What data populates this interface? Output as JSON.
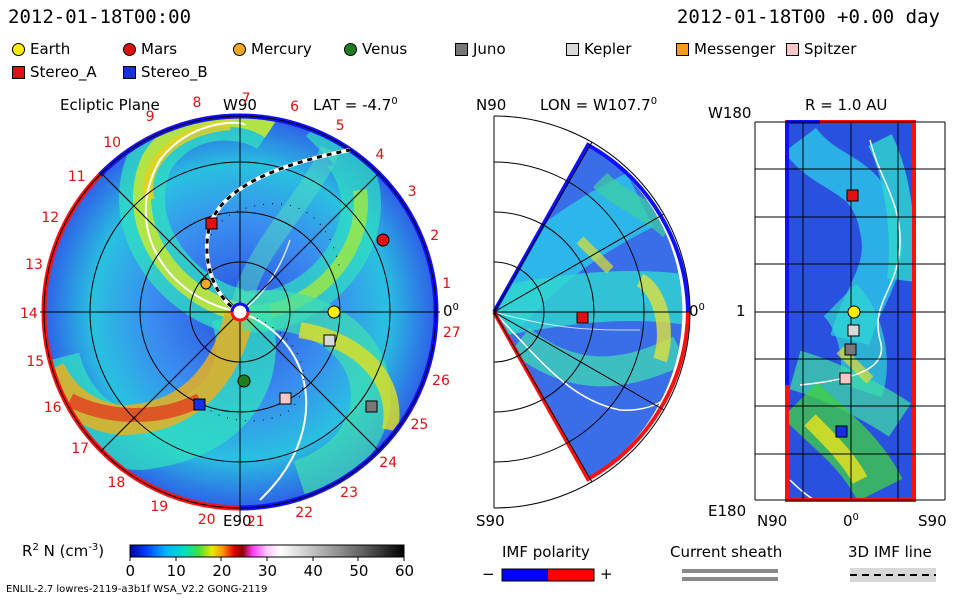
{
  "header": {
    "timestamp_left": "2012-01-18T00:00",
    "timestamp_right": "2012-01-18T00 +0.00 day"
  },
  "legend": [
    {
      "label": "Earth",
      "shape": "circle",
      "color": "#ffee00"
    },
    {
      "label": "Mars",
      "shape": "circle",
      "color": "#e11010"
    },
    {
      "label": "Mercury",
      "shape": "circle",
      "color": "#f5a623"
    },
    {
      "label": "Venus",
      "shape": "circle",
      "color": "#1e7d1e"
    },
    {
      "label": "Juno",
      "shape": "square",
      "color": "#777777"
    },
    {
      "label": "Kepler",
      "shape": "square",
      "color": "#d9d9d9"
    },
    {
      "label": "Messenger",
      "shape": "square",
      "color": "#f59c1a"
    },
    {
      "label": "Spitzer",
      "shape": "square",
      "color": "#f7c6c6"
    },
    {
      "label": "Stereo_A",
      "shape": "square",
      "color": "#e11010"
    },
    {
      "label": "Stereo_B",
      "shape": "square",
      "color": "#1530e0"
    }
  ],
  "ecliptic": {
    "title": "Ecliptic Plane",
    "lat": "LAT = -4.7",
    "deg_sup": "0",
    "w90": "W90",
    "e90": "E90",
    "zero_label": "0",
    "rotations": [
      "1",
      "2",
      "3",
      "4",
      "5",
      "6",
      "7",
      "8",
      "9",
      "10",
      "11",
      "12",
      "13",
      "14",
      "15",
      "16",
      "17",
      "18",
      "19",
      "20",
      "21",
      "22",
      "23",
      "24",
      "25",
      "26",
      "27"
    ]
  },
  "meridional": {
    "n90": "N90",
    "s90": "S90",
    "lon": "LON = W107.7",
    "deg_sup": "0",
    "zero_label": "0"
  },
  "radial": {
    "title": "R = 1.0 AU",
    "w180": "W180",
    "e180": "E180",
    "one": "1",
    "n90": "N90",
    "zero": "0",
    "s90": "S90",
    "deg_sup": "0"
  },
  "colorbar": {
    "label": "R",
    "label_sup": "2",
    "label_rest": " N (cm",
    "label_exp": "-3",
    "label_close": ")",
    "ticks": [
      "0",
      "10",
      "20",
      "30",
      "40",
      "50",
      "60"
    ]
  },
  "imf_polarity": {
    "title": "IMF polarity",
    "minus": "−",
    "plus": "+",
    "neg_color": "#0000ff",
    "pos_color": "#ff0000"
  },
  "current_sheath": {
    "title": "Current sheath"
  },
  "imf_line": {
    "title": "3D IMF line"
  },
  "footer": {
    "model_string": "ENLIL-2.7 lowres-2119-a3b1f WSA_V2.2 GONG-2119"
  }
}
